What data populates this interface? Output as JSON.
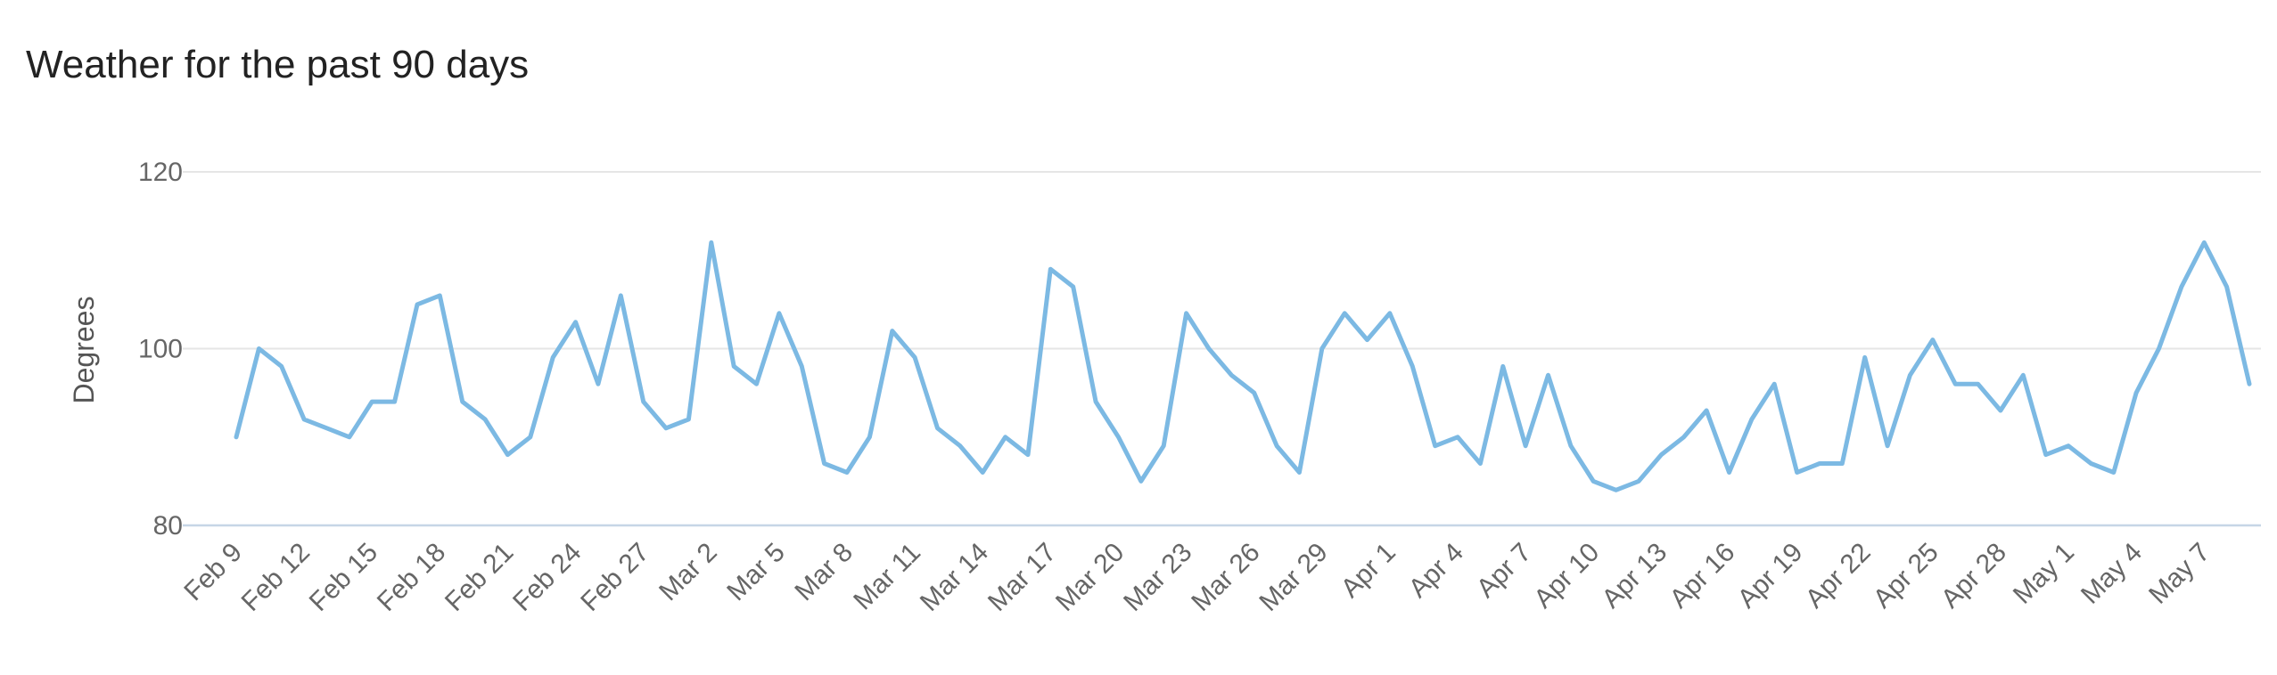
{
  "chart_data": {
    "type": "line",
    "title": "Weather for the past 90 days",
    "xlabel": "",
    "ylabel": "Degrees",
    "ylim": [
      80,
      120
    ],
    "yticks": [
      80,
      100,
      120
    ],
    "grid": true,
    "line_color": "#7cb9e3",
    "x_tick_labels": [
      "Feb 9",
      "Feb 12",
      "Feb 15",
      "Feb 18",
      "Feb 21",
      "Feb 24",
      "Feb 27",
      "Mar 2",
      "Mar 5",
      "Mar 8",
      "Mar 11",
      "Mar 14",
      "Mar 17",
      "Mar 20",
      "Mar 23",
      "Mar 26",
      "Mar 29",
      "Apr 1",
      "Apr 4",
      "Apr 7",
      "Apr 10",
      "Apr 13",
      "Apr 16",
      "Apr 19",
      "Apr 22",
      "Apr 25",
      "Apr 28",
      "May 1",
      "May 4",
      "May 7"
    ],
    "x_tick_index": [
      0,
      3,
      6,
      9,
      12,
      15,
      18,
      21,
      24,
      27,
      30,
      33,
      36,
      39,
      42,
      45,
      48,
      51,
      54,
      57,
      60,
      63,
      66,
      69,
      72,
      75,
      78,
      81,
      84,
      87
    ],
    "series": [
      {
        "values": [
          90,
          100,
          98,
          92,
          91,
          90,
          94,
          94,
          105,
          106,
          94,
          92,
          88,
          90,
          99,
          103,
          96,
          106,
          94,
          91,
          92,
          112,
          98,
          96,
          104,
          98,
          87,
          86,
          90,
          102,
          99,
          91,
          89,
          86,
          90,
          88,
          109,
          107,
          94,
          90,
          85,
          89,
          104,
          100,
          97,
          95,
          89,
          86,
          100,
          104,
          101,
          104,
          98,
          89,
          90,
          87,
          98,
          89,
          97,
          89,
          85,
          84,
          85,
          88,
          90,
          93,
          86,
          92,
          96,
          86,
          87,
          87,
          99,
          89,
          97,
          101,
          96,
          96,
          93,
          97,
          88,
          89,
          87,
          86,
          95,
          100,
          107,
          112,
          107,
          96
        ]
      }
    ]
  }
}
